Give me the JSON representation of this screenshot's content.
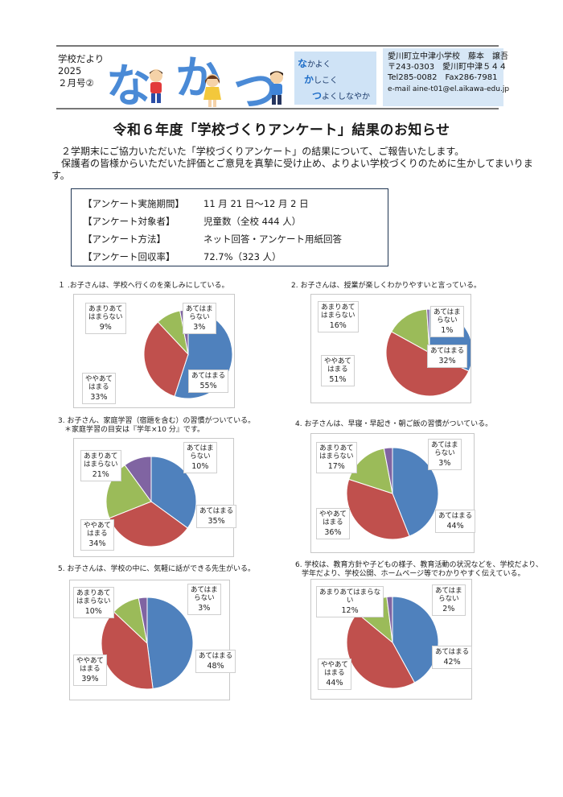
{
  "header": {
    "newsletter_name": "学校だより",
    "year": "2025",
    "issue": "２月号②",
    "masthead": [
      "な",
      "か",
      "つ"
    ],
    "motto": [
      {
        "initial": "な",
        "rest": "かよく"
      },
      {
        "initial": "か",
        "rest": "しこく"
      },
      {
        "initial": "つ",
        "rest": "よくしなやか"
      }
    ],
    "school_name": "愛川町立中津小学校",
    "principal": "藤本　譲吾",
    "address": "〒243-0303　愛川町中津５４４",
    "tel_fax": "Tel285-0082　Fax286-7981",
    "email": "e-mail aine-t01@el.aikawa-edu.jp"
  },
  "title": "令和６年度「学校づくりアンケート」結果のお知らせ",
  "intro": [
    "２学期末にご協力いただいた「学校づくりアンケート」の結果について、ご報告いたします。",
    "保護者の皆様からいただいた評価とご意見を真摯に受け止め、よりよい学校づくりのために生かしてまいります。"
  ],
  "info": [
    {
      "label": "【アンケート実施期間】",
      "value": "11 月 21 日～12 月 2 日"
    },
    {
      "label": "【アンケート対象者】",
      "value": "児童数（全校 444 人）"
    },
    {
      "label": "【アンケート方法】",
      "value": "ネット回答・アンケート用紙回答"
    },
    {
      "label": "【アンケート回収率】",
      "value": "72.7%（323 人）"
    }
  ],
  "colors": {
    "atehamaru": "#4f81bd",
    "yaya": "#c0504d",
    "amari": "#9bbb59",
    "nai": "#8064a2"
  },
  "questions": [
    {
      "text": [
        "１ .お子さんは、学校へ行くのを楽しみにしている。"
      ]
    },
    {
      "text": [
        "2. お子さんは、授業が楽しくわかりやすいと言っている。"
      ]
    },
    {
      "text": [
        "3. お子さん、家庭学習（宿題を含む）の習慣がついている。",
        "＊家庭学習の目安は『学年×10 分』です。"
      ]
    },
    {
      "text": [
        "4. お子さんは、早寝・早起き・朝ご飯の習慣がついている。"
      ]
    },
    {
      "text": [
        "5. お子さんは、学校の中に、気軽に話ができる先生がいる。"
      ]
    },
    {
      "text": [
        "6. 学校は、教育方針や子どもの様子、教育活動の状況などを、学校だより、",
        "学年だより、学校公開、ホームページ等でわかりやすく伝えている。"
      ]
    }
  ],
  "chart_data": [
    {
      "type": "pie",
      "categories": [
        "あてはまる",
        "ややあてはまる",
        "あまりあてはまらない",
        "あてはまらない"
      ],
      "values": [
        55,
        33,
        9,
        3
      ],
      "labels": [
        "あてはまる",
        "ややあて|はまる",
        "あまりあて|はまらない",
        "あてはま|らない"
      ],
      "pcts": [
        "55%",
        "33%",
        "9%",
        "3%"
      ]
    },
    {
      "type": "pie",
      "categories": [
        "あてはまる",
        "ややあてはまる",
        "あまりあてはまらない",
        "あてはまらない"
      ],
      "values": [
        32,
        51,
        16,
        1
      ],
      "labels": [
        "あてはまる",
        "ややあて|はまる",
        "あまりあて|はまらない",
        "あてはま|らない"
      ],
      "pcts": [
        "32%",
        "51%",
        "16%",
        "1%"
      ]
    },
    {
      "type": "pie",
      "categories": [
        "あてはまる",
        "ややあてはまる",
        "あまりあてはまらない",
        "あてはまらない"
      ],
      "values": [
        35,
        34,
        21,
        10
      ],
      "labels": [
        "あてはまる",
        "ややあて|はまる",
        "あまりあて|はまらない",
        "あてはま|らない"
      ],
      "pcts": [
        "35%",
        "34%",
        "21%",
        "10%"
      ]
    },
    {
      "type": "pie",
      "categories": [
        "あてはまる",
        "ややあてはまる",
        "あまりあてはまらない",
        "あてはまらない"
      ],
      "values": [
        44,
        36,
        17,
        3
      ],
      "labels": [
        "あてはまる",
        "ややあて|はまる",
        "あまりあて|はまらない",
        "あてはま|らない"
      ],
      "pcts": [
        "44%",
        "36%",
        "17%",
        "3%"
      ]
    },
    {
      "type": "pie",
      "categories": [
        "あてはまる",
        "ややあてはまる",
        "あまりあてはまらない",
        "あてはまらない"
      ],
      "values": [
        48,
        39,
        10,
        3
      ],
      "labels": [
        "あてはまる",
        "ややあて|はまる",
        "あまりあて|はまらない",
        "あてはま|らない"
      ],
      "pcts": [
        "48%",
        "39%",
        "10%",
        "3%"
      ]
    },
    {
      "type": "pie",
      "categories": [
        "あてはまる",
        "ややあてはまる",
        "あまりあてはまらない",
        "あてはまらない"
      ],
      "values": [
        42,
        44,
        12,
        2
      ],
      "labels": [
        "あてはまる",
        "ややあて|はまる",
        "あまりあてはまらな|い",
        "あてはま|らない"
      ],
      "pcts": [
        "42%",
        "44%",
        "12%",
        "2%"
      ]
    }
  ]
}
